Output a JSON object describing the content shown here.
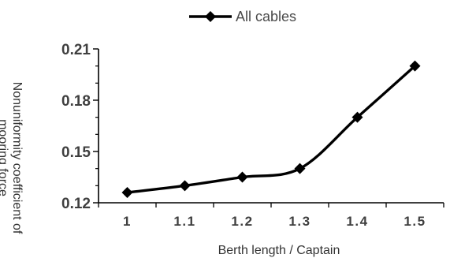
{
  "chart_data": {
    "type": "line",
    "title": "",
    "xlabel": "Berth length / Captain",
    "ylabel": "Nonuniformity coefficient of mooring force",
    "ylabel_lines": [
      "Nonuniformity coefficient of",
      "mooring force"
    ],
    "categories": [
      "1",
      "1.1",
      "1.2",
      "1.3",
      "1.4",
      "1.5"
    ],
    "x": [
      1.0,
      1.1,
      1.2,
      1.3,
      1.4,
      1.5
    ],
    "series": [
      {
        "name": "All cables",
        "values": [
          0.126,
          0.13,
          0.135,
          0.14,
          0.17,
          0.2
        ],
        "color": "#000000",
        "marker": "diamond"
      }
    ],
    "ylim": [
      0.12,
      0.21
    ],
    "yticks": [
      "0.12",
      "0.15",
      "0.18",
      "0.21"
    ],
    "ytick_values": [
      0.12,
      0.15,
      0.18,
      0.21
    ],
    "y_minor_step": 0.01,
    "grid": false,
    "legend_position": "top-center",
    "smooth": true
  }
}
